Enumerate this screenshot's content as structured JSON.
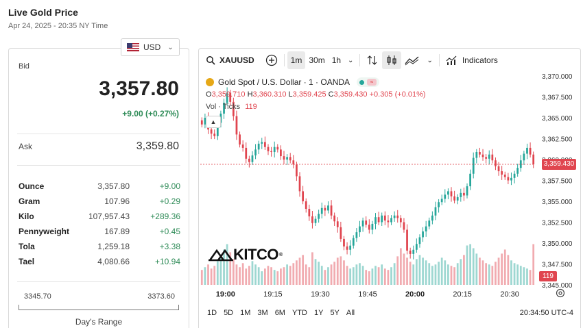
{
  "page": {
    "title": "Live Gold Price",
    "subtitle": "Apr 24, 2025 - 20:35 NY Time"
  },
  "currency": {
    "selected": "USD"
  },
  "quote": {
    "bid_label": "Bid",
    "bid": "3,357.80",
    "change": "+9.00 (+0.27%)",
    "ask_label": "Ask",
    "ask": "3,359.80"
  },
  "units": [
    {
      "name": "Ounce",
      "price": "3,357.80",
      "change": "+9.00"
    },
    {
      "name": "Gram",
      "price": "107.96",
      "change": "+0.29"
    },
    {
      "name": "Kilo",
      "price": "107,957.43",
      "change": "+289.36"
    },
    {
      "name": "Pennyweight",
      "price": "167.89",
      "change": "+0.45"
    },
    {
      "name": "Tola",
      "price": "1,259.18",
      "change": "+3.38"
    },
    {
      "name": "Tael",
      "price": "4,080.66",
      "change": "+10.94"
    }
  ],
  "days_range": {
    "low": "3345.70",
    "high": "3373.60",
    "label": "Day's Range"
  },
  "toolbar": {
    "symbol": "XAUUSD",
    "intervals": [
      "1m",
      "30m",
      "1h"
    ],
    "active_interval": "1m",
    "indicators_label": "Indicators"
  },
  "legend": {
    "title": "Gold Spot / U.S. Dollar · 1 · OANDA",
    "o_label": "O",
    "o": "3,359.710",
    "h_label": "H",
    "h": "3,360.310",
    "l_label": "L",
    "l": "3,359.425",
    "c_label": "C",
    "c": "3,359.430",
    "chg": "+0.305 (+0.01%)",
    "vol_label": "Vol · Ticks",
    "vol": "119"
  },
  "logo": {
    "text": "KITCO",
    "mark": "®"
  },
  "last_price_tag": "3,359.430",
  "volume_tag": "119",
  "range_buttons": [
    "1D",
    "5D",
    "1M",
    "3M",
    "6M",
    "YTD",
    "1Y",
    "5Y",
    "All"
  ],
  "clock": "20:34:50 UTC-4",
  "colors": {
    "up": "#26a69a",
    "down": "#e0454f",
    "gain_text": "#2e8b57"
  },
  "chart_data": {
    "type": "candlestick",
    "y_ticks": [
      "3,370.000",
      "3,367.500",
      "3,365.000",
      "3,362.500",
      "3,360.000",
      "3,357.500",
      "3,355.000",
      "3,352.500",
      "3,350.000",
      "3,347.500",
      "3,345.000"
    ],
    "ylim": [
      3345,
      3370
    ],
    "x_ticks": [
      "19:00",
      "19:15",
      "19:30",
      "19:45",
      "20:00",
      "20:15",
      "20:30"
    ],
    "x_bold": [
      "19:00",
      "20:00"
    ],
    "close_path": [
      3364.2,
      3365.0,
      3363.6,
      3363.1,
      3362.8,
      3364.4,
      3365.5,
      3366.8,
      3368.0,
      3366.9,
      3365.2,
      3363.0,
      3361.8,
      3361.4,
      3360.1,
      3359.7,
      3360.5,
      3361.2,
      3361.9,
      3362.1,
      3361.5,
      3361.0,
      3360.9,
      3361.5,
      3361.2,
      3360.4,
      3360.0,
      3360.3,
      3359.9,
      3359.4,
      3358.0,
      3356.2,
      3355.0,
      3354.1,
      3353.2,
      3352.4,
      3352.9,
      3353.5,
      3354.2,
      3353.9,
      3354.5,
      3353.3,
      3352.6,
      3351.9,
      3350.5,
      3349.6,
      3349.2,
      3349.7,
      3350.6,
      3351.3,
      3352.0,
      3352.7,
      3352.2,
      3351.6,
      3352.3,
      3353.1,
      3352.5,
      3353.3,
      3352.7,
      3352.5,
      3353.0,
      3353.3,
      3353.0,
      3352.5,
      3351.6,
      3349.1,
      3348.7,
      3349.2,
      3349.9,
      3350.7,
      3351.4,
      3352.0,
      3352.7,
      3353.3,
      3354.3,
      3354.9,
      3355.3,
      3355.8,
      3356.2,
      3355.6,
      3355.1,
      3355.5,
      3356.0,
      3355.7,
      3356.8,
      3358.3,
      3360.2,
      3360.9,
      3360.6,
      3360.3,
      3360.1,
      3360.6,
      3359.9,
      3359.2,
      3358.6,
      3358.2,
      3357.9,
      3357.5,
      3357.8,
      3358.3,
      3359.0,
      3359.9,
      3360.7,
      3361.4,
      3360.6,
      3359.43
    ],
    "volume_ticks": [
      22,
      26,
      30,
      24,
      28,
      35,
      40,
      52,
      60,
      48,
      38,
      30,
      26,
      32,
      24,
      28,
      35,
      30,
      26,
      20,
      24,
      28,
      26,
      22,
      20,
      24,
      26,
      30,
      28,
      32,
      36,
      40,
      44,
      30,
      26,
      48,
      38,
      34,
      28,
      22,
      26,
      30,
      34,
      40,
      42,
      36,
      28,
      24,
      26,
      30,
      32,
      28,
      22,
      20,
      24,
      28,
      26,
      30,
      24,
      22,
      26,
      32,
      42,
      54,
      46,
      40,
      34,
      30,
      38,
      44,
      40,
      36,
      32,
      28,
      30,
      34,
      40,
      36,
      30,
      28,
      26,
      32,
      38,
      44,
      58,
      66,
      54,
      46,
      40,
      36,
      32,
      30,
      28,
      34,
      40,
      46,
      52,
      44,
      36,
      32,
      30,
      28,
      26,
      24,
      22,
      119
    ]
  }
}
